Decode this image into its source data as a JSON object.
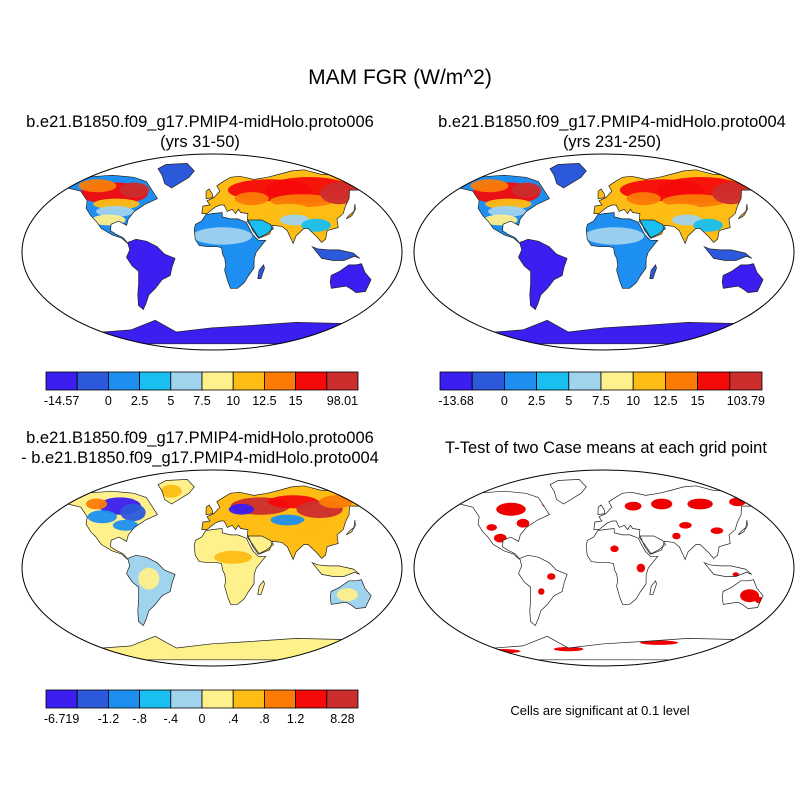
{
  "figure": {
    "title": "MAM FGR (W/m^2)"
  },
  "panels": [
    {
      "id": "proto006",
      "title_line1": "b.e21.B1850.f09_g17.PMIP4-midHolo.proto006",
      "title_line2": "(yrs 31-50)",
      "colorbar": {
        "min_label": "-14.57",
        "max_label": "98.01",
        "tick_labels": [
          "0",
          "2.5",
          "5",
          "7.5",
          "10",
          "12.5",
          "15"
        ],
        "colors": [
          "#3b1ef0",
          "#2c58dc",
          "#1e8ff0",
          "#18bff0",
          "#9fd3ee",
          "#fef08a",
          "#fdbd14",
          "#fb7b06",
          "#f50a0a",
          "#cc2d2d"
        ]
      }
    },
    {
      "id": "proto004",
      "title_line1": "b.e21.B1850.f09_g17.PMIP4-midHolo.proto004",
      "title_line2": "(yrs 231-250)",
      "colorbar": {
        "min_label": "-13.68",
        "max_label": "103.79",
        "tick_labels": [
          "0",
          "2.5",
          "5",
          "7.5",
          "10",
          "12.5",
          "15"
        ],
        "colors": [
          "#3b1ef0",
          "#2c58dc",
          "#1e8ff0",
          "#18bff0",
          "#9fd3ee",
          "#fef08a",
          "#fdbd14",
          "#fb7b06",
          "#f50a0a",
          "#cc2d2d"
        ]
      }
    },
    {
      "id": "difference",
      "title_line1": "b.e21.B1850.f09_g17.PMIP4-midHolo.proto006",
      "title_line2": "- b.e21.B1850.f09_g17.PMIP4-midHolo.proto004",
      "colorbar": {
        "min_label": "-6.719",
        "max_label": "8.28",
        "tick_labels": [
          "-1.2",
          "-.8",
          "-.4",
          "0",
          ".4",
          ".8",
          "1.2"
        ],
        "colors": [
          "#3b1ef0",
          "#2c58dc",
          "#1e8ff0",
          "#18bff0",
          "#9fd3ee",
          "#fef08a",
          "#fdbd14",
          "#fb7b06",
          "#f50a0a",
          "#cc2d2d"
        ]
      }
    },
    {
      "id": "ttest",
      "title_line1": "T-Test of two Case means at each grid point",
      "note": "Cells are significant at 0.1 level"
    }
  ]
}
